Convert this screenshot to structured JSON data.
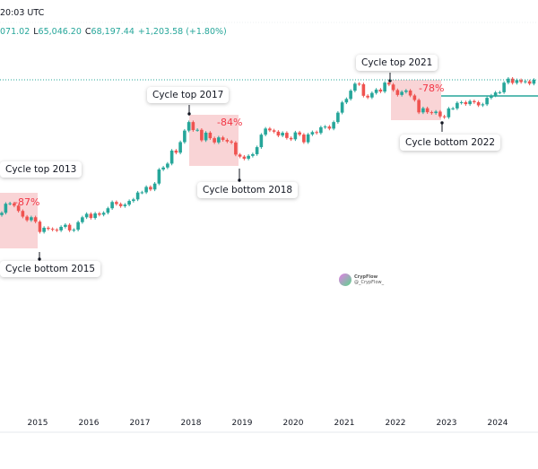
{
  "header": {
    "time": "20:03 UTC",
    "open_fragment": "071.02",
    "low_label": "L",
    "low": "65,046.20",
    "close_label": "C",
    "close": "68,197.44",
    "change": "+1,203.58 (+1.80%)"
  },
  "watermark": {
    "name": "CrypFlow",
    "handle": "@_CrypFlow_"
  },
  "colors": {
    "up": "#26a69a",
    "down": "#ef5350",
    "drawdown_box": "#f8c9cc",
    "drawdown_text": "#f23645",
    "level_line": "#26a69a"
  },
  "chart_data": {
    "type": "candlestick",
    "scale": "log",
    "interval": "monthly",
    "start": "2014-04",
    "closes": [
      447,
      630,
      640,
      586,
      480,
      387,
      338,
      378,
      320,
      217,
      254,
      244,
      236,
      230,
      263,
      284,
      230,
      236,
      314,
      377,
      430,
      368,
      437,
      416,
      448,
      531,
      673,
      624,
      575,
      609,
      700,
      742,
      963,
      970,
      1190,
      1080,
      1350,
      2300,
      2480,
      2870,
      4700,
      4340,
      6470,
      10000,
      13800,
      10200,
      10300,
      6930,
      9240,
      7500,
      6400,
      7730,
      7030,
      6630,
      6370,
      4040,
      3740,
      3460,
      3850,
      4100,
      5350,
      8570,
      10800,
      10100,
      9600,
      8300,
      9200,
      7570,
      7200,
      9350,
      8600,
      6440,
      8660,
      9460,
      9150,
      11350,
      11650,
      10780,
      13800,
      19700,
      29000,
      33100,
      45200,
      58900,
      57700,
      37300,
      35000,
      41500,
      47100,
      43800,
      61300,
      57000,
      46300,
      38500,
      43200,
      45500,
      37700,
      31800,
      19900,
      23300,
      20050,
      19400,
      20500,
      17150,
      16550,
      23100,
      23150,
      28500,
      29250,
      27200,
      30500,
      29200,
      26000,
      27000,
      34500,
      37700,
      42300,
      42600,
      61100,
      71300,
      60600,
      67500,
      62700,
      64600,
      58900,
      68197
    ],
    "x_ticks": [
      "2015",
      "2016",
      "2017",
      "2018",
      "2019",
      "2020",
      "2021",
      "2022",
      "2023",
      "2024"
    ],
    "last_price": 68197.44,
    "level_line": 42000,
    "annotations": [
      {
        "label": "Cycle top 2013",
        "drawdown": "-87%"
      },
      {
        "label": "Cycle bottom 2015"
      },
      {
        "label": "Cycle top 2017",
        "drawdown": "-84%"
      },
      {
        "label": "Cycle bottom 2018"
      },
      {
        "label": "Cycle top 2021",
        "drawdown": "-78%"
      },
      {
        "label": "Cycle bottom 2022"
      }
    ]
  }
}
